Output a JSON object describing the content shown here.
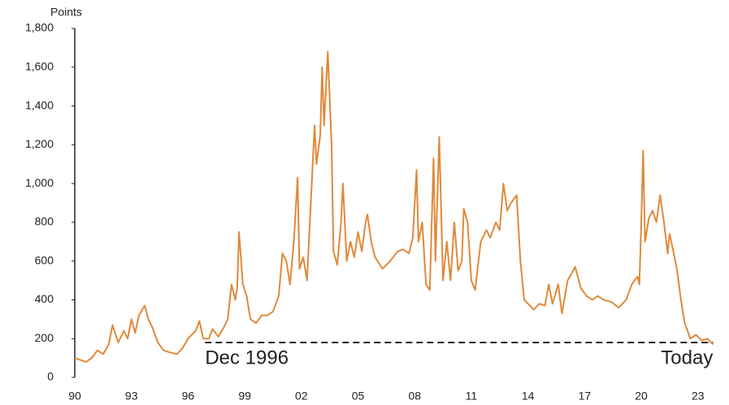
{
  "chart_data": {
    "type": "line",
    "y_label": "Points",
    "color": "#e0893a",
    "grid": false,
    "x": [
      1990.0,
      1990.3,
      1990.6,
      1990.9,
      1991.2,
      1991.5,
      1991.8,
      1992.0,
      1992.3,
      1992.6,
      1992.8,
      1993.0,
      1993.2,
      1993.4,
      1993.7,
      1993.9,
      1994.1,
      1994.4,
      1994.7,
      1995.0,
      1995.4,
      1995.7,
      1996.0,
      1996.4,
      1996.6,
      1996.8,
      1997.1,
      1997.3,
      1997.6,
      1997.9,
      1998.1,
      1998.3,
      1998.5,
      1998.6,
      1998.7,
      1998.9,
      1999.1,
      1999.3,
      1999.6,
      1999.9,
      2000.2,
      2000.5,
      2000.8,
      2001.0,
      2001.2,
      2001.4,
      2001.6,
      2001.8,
      2001.9,
      2002.1,
      2002.3,
      2002.5,
      2002.7,
      2002.8,
      2003.0,
      2003.1,
      2003.2,
      2003.4,
      2003.6,
      2003.7,
      2003.9,
      2004.1,
      2004.2,
      2004.4,
      2004.6,
      2004.8,
      2005.0,
      2005.2,
      2005.4,
      2005.5,
      2005.7,
      2005.9,
      2006.3,
      2006.7,
      2007.1,
      2007.4,
      2007.7,
      2007.9,
      2008.1,
      2008.2,
      2008.4,
      2008.6,
      2008.8,
      2009.0,
      2009.1,
      2009.3,
      2009.5,
      2009.7,
      2009.9,
      2010.1,
      2010.3,
      2010.5,
      2010.6,
      2010.8,
      2011.0,
      2011.2,
      2011.5,
      2011.8,
      2012.0,
      2012.3,
      2012.5,
      2012.7,
      2012.9,
      2013.1,
      2013.4,
      2013.6,
      2013.8,
      2014.0,
      2014.3,
      2014.6,
      2014.9,
      2015.1,
      2015.3,
      2015.6,
      2015.8,
      2016.1,
      2016.5,
      2016.8,
      2017.1,
      2017.4,
      2017.7,
      2018.0,
      2018.4,
      2018.8,
      2019.2,
      2019.5,
      2019.8,
      2019.9,
      2020.0,
      2020.1,
      2020.2,
      2020.4,
      2020.6,
      2020.8,
      2021.0,
      2021.2,
      2021.4,
      2021.5,
      2021.7,
      2021.9,
      2022.1,
      2022.3,
      2022.6,
      2022.9,
      2023.2,
      2023.5,
      2023.8
    ],
    "values": [
      100,
      90,
      80,
      100,
      140,
      120,
      170,
      270,
      180,
      240,
      200,
      300,
      230,
      320,
      370,
      300,
      260,
      180,
      140,
      130,
      120,
      150,
      200,
      240,
      290,
      200,
      200,
      250,
      210,
      260,
      300,
      480,
      400,
      460,
      750,
      480,
      420,
      300,
      280,
      320,
      320,
      340,
      420,
      640,
      600,
      480,
      700,
      1030,
      560,
      620,
      500,
      900,
      1300,
      1100,
      1250,
      1600,
      1300,
      1680,
      1200,
      650,
      580,
      800,
      1000,
      600,
      700,
      620,
      750,
      650,
      800,
      840,
      700,
      620,
      560,
      600,
      650,
      660,
      640,
      720,
      1070,
      700,
      800,
      480,
      450,
      1130,
      600,
      1240,
      500,
      700,
      500,
      800,
      550,
      600,
      870,
      800,
      500,
      450,
      700,
      760,
      720,
      800,
      760,
      1000,
      860,
      900,
      940,
      600,
      400,
      380,
      350,
      380,
      370,
      480,
      380,
      480,
      330,
      500,
      570,
      460,
      420,
      400,
      420,
      400,
      390,
      360,
      400,
      480,
      520,
      480,
      800,
      1170,
      700,
      820,
      860,
      800,
      940,
      800,
      640,
      740,
      650,
      550,
      400,
      280,
      200,
      220,
      190,
      200,
      170
    ],
    "xlim": [
      1990,
      2024
    ],
    "xticks": [
      {
        "value": 1990,
        "label": "90"
      },
      {
        "value": 1993,
        "label": "93"
      },
      {
        "value": 1996,
        "label": "96"
      },
      {
        "value": 1999,
        "label": "99"
      },
      {
        "value": 2002,
        "label": "02"
      },
      {
        "value": 2005,
        "label": "05"
      },
      {
        "value": 2008,
        "label": "08"
      },
      {
        "value": 2011,
        "label": "11"
      },
      {
        "value": 2014,
        "label": "14"
      },
      {
        "value": 2017,
        "label": "17"
      },
      {
        "value": 2020,
        "label": "20"
      },
      {
        "value": 2023,
        "label": "23"
      }
    ],
    "ylim": [
      0,
      1800
    ],
    "yticks": [
      0,
      200,
      400,
      600,
      800,
      {
        "value": 1000,
        "label": "1,000"
      },
      {
        "value": 1200,
        "label": "1,200"
      },
      {
        "value": 1400,
        "label": "1,400"
      },
      {
        "value": 1600,
        "label": "1,600"
      },
      {
        "value": 1800,
        "label": "1,800"
      }
    ],
    "reference_line": {
      "y": 180,
      "x": [
        1996.9,
        2023.8
      ]
    },
    "annotations": [
      "Dec 1996",
      "Today"
    ]
  }
}
